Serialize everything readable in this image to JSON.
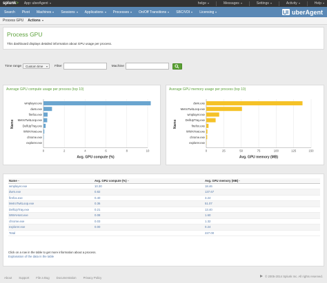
{
  "topbar": {
    "logo": "splunk",
    "logo_suffix": ">",
    "app_label": "App: uberAgent",
    "right": [
      "helge",
      "Messages",
      "Settings",
      "Activity",
      "Help"
    ]
  },
  "nav": {
    "items": [
      "Search",
      "Pivot",
      "Machines",
      "Sessions",
      "Applications",
      "Processes",
      "On/Off Transitions",
      "SBC/VDI",
      "Licensing"
    ],
    "brand": "uberAgent"
  },
  "dashbar": {
    "title": "Process GPU",
    "actions": "Actions"
  },
  "header": {
    "title": "Process GPU",
    "description": "This dashboard displays detailed information about GPU usage per process."
  },
  "filters": {
    "time_label": "Time range",
    "time_value": "Custom time",
    "filter_label": "Filter",
    "filter_value": "",
    "machine_label": "Machine",
    "machine_value": ""
  },
  "colors": {
    "brand_green": "#5ca13b",
    "nav_blue": "#5a88b5",
    "bar_blue": "#6aa5cf",
    "bar_yellow": "#f5c227"
  },
  "chart_data": [
    {
      "type": "bar",
      "orientation": "horizontal",
      "title": "Average GPU compute usage per process (top 10)",
      "xlabel": "Avg. GPU compute (%)",
      "ylabel": "Name",
      "categories": [
        "wmplayer.exe",
        "dwm.exe",
        "firefox.exe",
        "MetroTwitLoop.exe",
        "DellUpTray.exe",
        "WWAHost.exe",
        "chrome.exe",
        "explorer.exe"
      ],
      "values": [
        10.3,
        0.82,
        0.4,
        0.36,
        0.21,
        0.08,
        0.03,
        0.0
      ],
      "xlim": [
        0,
        10
      ],
      "xticks": [
        0,
        2,
        4,
        6,
        8,
        10
      ],
      "color": "#6aa5cf"
    },
    {
      "type": "bar",
      "orientation": "horizontal",
      "title": "Average GPU memory usage per process (top 10)",
      "xlabel": "Avg. GPU memory (MB)",
      "ylabel": "Name",
      "categories": [
        "dwm.exe",
        "MetroTwitLoop.exe",
        "wmplayer.exe",
        "DellUpTray.exe",
        "firefox.exe",
        "WWAHost.exe",
        "chrome.exe",
        "explorer.exe"
      ],
      "values": [
        137.67,
        51.07,
        18.46,
        13.4,
        3.24,
        1.6,
        1.32,
        0.24
      ],
      "xlim": [
        0,
        150
      ],
      "xticks": [
        0,
        25,
        50,
        75,
        100,
        125,
        150
      ],
      "color": "#f5c227"
    }
  ],
  "table": {
    "headers": [
      "Name",
      "Avg. GPU compute (%)",
      "Avg. GPU memory (MB)"
    ],
    "rows": [
      [
        "wmplayer.exe",
        "10.30",
        "18.46"
      ],
      [
        "dwm.exe",
        "0.82",
        "137.67"
      ],
      [
        "firefox.exe",
        "0.40",
        "3.24"
      ],
      [
        "MetroTwitLoop.exe",
        "0.36",
        "51.07"
      ],
      [
        "DellUpTray.exe",
        "0.21",
        "13.40"
      ],
      [
        "WWAHost.exe",
        "0.08",
        "1.60"
      ],
      [
        "chrome.exe",
        "0.03",
        "1.32"
      ],
      [
        "explorer.exe",
        "0.00",
        "0.24"
      ],
      [
        "Total",
        "",
        "227.00"
      ]
    ],
    "note": "Click on a row in the table to get more information about a process.",
    "link": "Explanation of the data in the table"
  },
  "footer": {
    "links": [
      "About",
      "Support",
      "File a Bug",
      "Documentation",
      "Privacy Policy"
    ],
    "copyright": "© 2005-2014 Splunk Inc. All rights reserved."
  }
}
